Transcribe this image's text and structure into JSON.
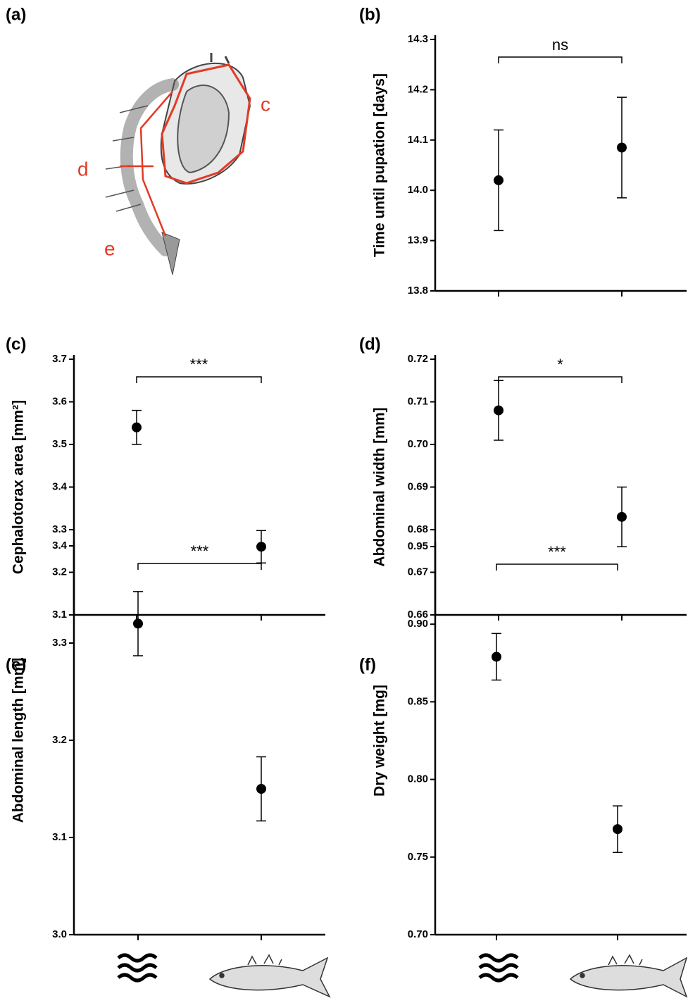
{
  "figure": {
    "panel_a": {
      "label": "(a)",
      "annotations": [
        "c",
        "d",
        "e"
      ]
    }
  },
  "chart_data": [
    {
      "type": "errorbar",
      "title": "(b)",
      "ylabel": "Time until pupation [days]",
      "annotation": "ns",
      "categories": [
        null,
        null
      ],
      "values": [
        14.02,
        14.085
      ],
      "errors": [
        0.1,
        0.1
      ],
      "color": "#000000",
      "ylim": [
        13.8,
        14.3
      ],
      "yticks": [
        13.8,
        13.9,
        {
          "value": 14.0,
          "label": "14.0"
        },
        14.1,
        14.2,
        14.3
      ]
    },
    {
      "type": "errorbar",
      "title": "(c)",
      "ylabel": "Cephalotorax area [mm²]",
      "annotation": "***",
      "categories": [
        null,
        null
      ],
      "values": [
        3.54,
        3.26
      ],
      "errors": [
        0.04,
        0.038
      ],
      "color": "#000000",
      "ylim": [
        3.1,
        3.7
      ],
      "yticks": [
        3.1,
        3.2,
        3.3,
        3.4,
        3.5,
        3.6,
        3.7
      ]
    },
    {
      "type": "errorbar",
      "title": "(d)",
      "ylabel": "Abdominal width [mm]",
      "annotation": "*",
      "categories": [
        null,
        null
      ],
      "values": [
        0.708,
        0.683
      ],
      "errors": [
        0.007,
        0.007
      ],
      "color": "#000000",
      "ylim": [
        0.66,
        0.72
      ],
      "yticks": [
        0.66,
        0.67,
        0.68,
        0.69,
        {
          "value": 0.7,
          "label": "0.70"
        },
        0.71,
        0.72
      ]
    },
    {
      "type": "errorbar",
      "title": "(e)",
      "ylabel": "Abdominal length [mm]",
      "annotation": "***",
      "categories": [
        null,
        null
      ],
      "values": [
        3.32,
        3.15
      ],
      "errors": [
        0.033,
        0.033
      ],
      "color": "#000000",
      "ylim": [
        3.0,
        3.4
      ],
      "yticks": [
        {
          "value": 3.0,
          "label": "3.0"
        },
        3.1,
        3.2,
        3.3,
        3.4
      ]
    },
    {
      "type": "errorbar",
      "title": "(f)",
      "ylabel": "Dry weight [mg]",
      "annotation": "***",
      "categories": [
        null,
        null
      ],
      "values": [
        0.879,
        0.768
      ],
      "errors": [
        0.015,
        0.015
      ],
      "color": "#000000",
      "ylim": [
        0.7,
        0.95
      ],
      "yticks": [
        {
          "value": 0.7,
          "label": "0.70"
        },
        0.75,
        {
          "value": 0.8,
          "label": "0.80"
        },
        0.85,
        {
          "value": 0.9,
          "label": "0.90"
        },
        0.95
      ]
    }
  ]
}
